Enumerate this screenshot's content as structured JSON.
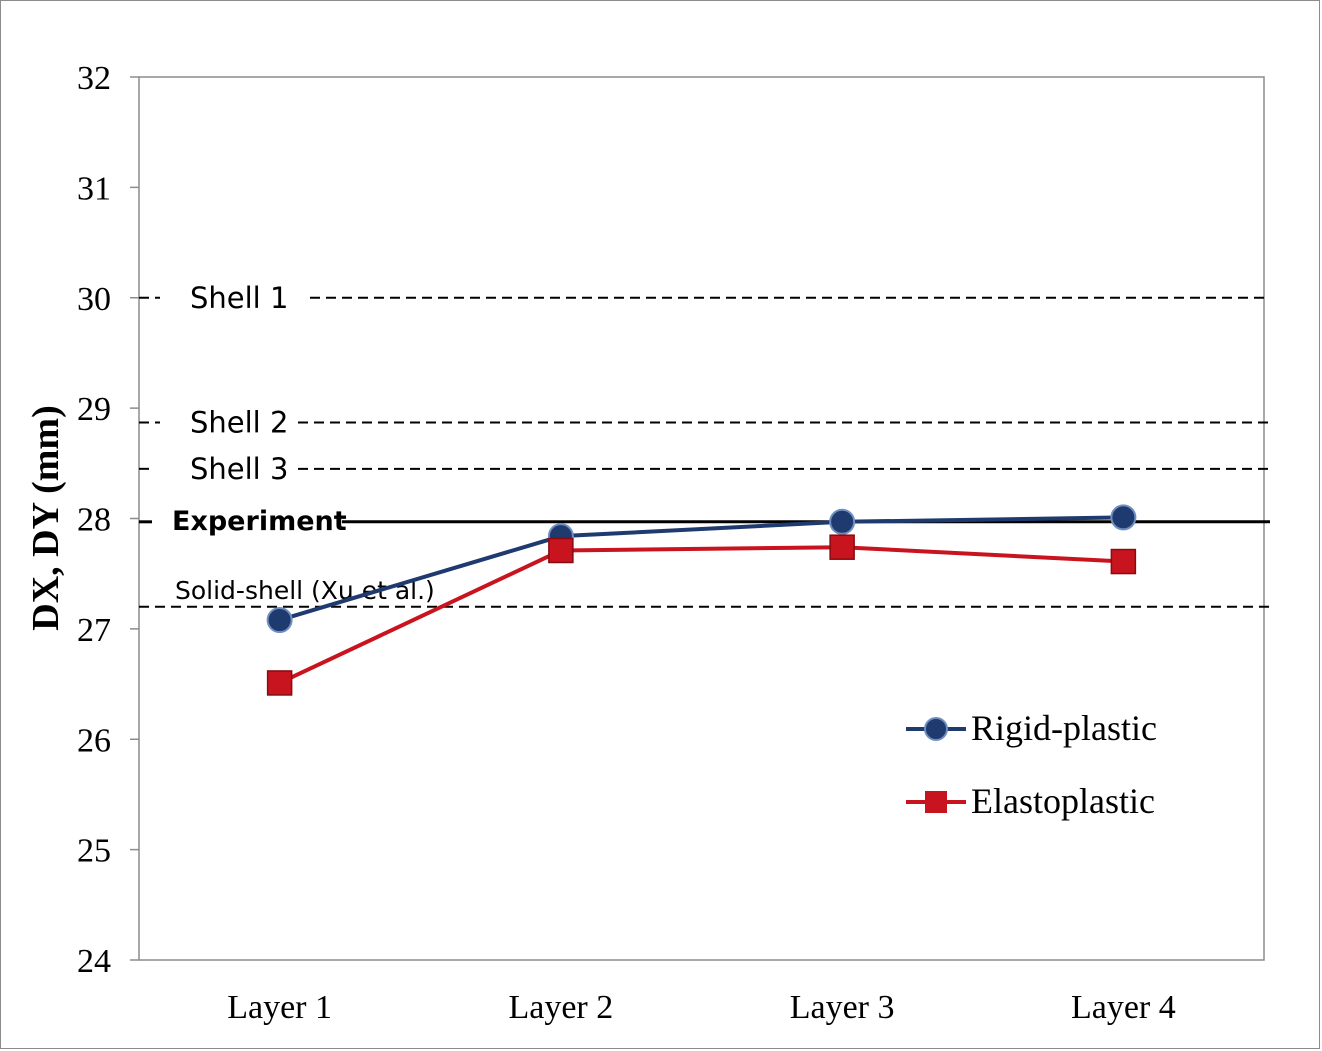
{
  "chart_data": {
    "type": "line",
    "categories": [
      "Layer 1",
      "Layer 2",
      "Layer 3",
      "Layer 4"
    ],
    "ylabel": "DX, DY (mm)",
    "ylim": [
      24,
      32
    ],
    "yticks": [
      "24",
      "25",
      "26",
      "27",
      "28",
      "29",
      "30",
      "31",
      "32"
    ],
    "grid": false,
    "legend_position": "bottom-right",
    "series": [
      {
        "name": "Rigid-plastic",
        "values": [
          27.08,
          27.84,
          27.97,
          28.01
        ],
        "color": "#1f3a6e",
        "marker": "circle"
      },
      {
        "name": "Elastoplastic",
        "values": [
          26.51,
          27.71,
          27.74,
          27.61
        ],
        "color": "#c8141e",
        "marker": "square"
      }
    ],
    "reference_lines": [
      {
        "label": "Shell 1",
        "value": 30.0,
        "style": "dashed"
      },
      {
        "label": "Shell 2",
        "value": 28.87,
        "style": "dashed"
      },
      {
        "label": "Shell 3",
        "value": 28.45,
        "style": "dashed"
      },
      {
        "label": "Experiment",
        "value": 27.97,
        "style": "solid"
      },
      {
        "label": "Solid-shell (Xu et al.)",
        "value": 27.2,
        "style": "dashed"
      }
    ]
  }
}
